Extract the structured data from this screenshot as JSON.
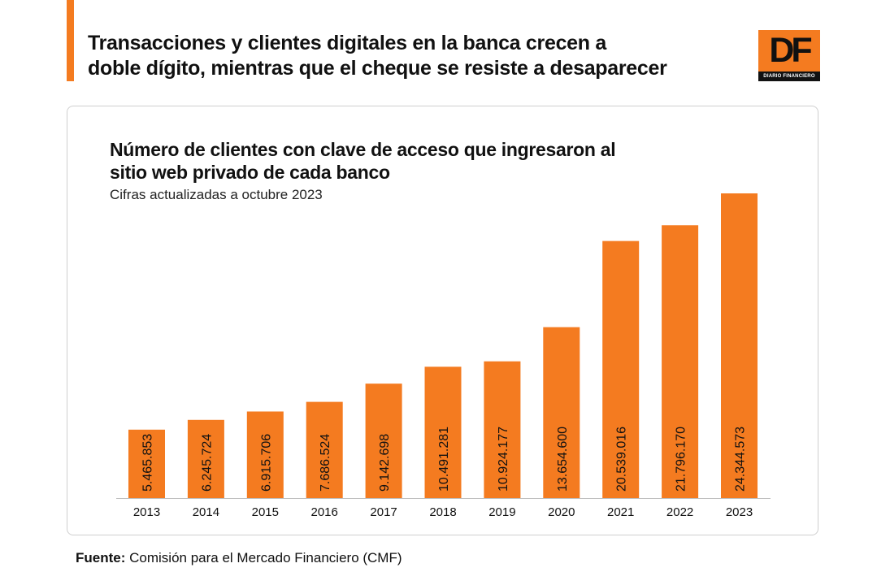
{
  "header": {
    "headline_line1": "Transacciones y clientes digitales en la banca crecen a",
    "headline_line2": "doble dígito, mientras que el cheque se resiste a desaparecer"
  },
  "logo": {
    "mark": "DF",
    "name": "DIARIO FINANCIERO"
  },
  "colors": {
    "accent": "#F47B20",
    "text": "#111111"
  },
  "chart_data": {
    "type": "bar",
    "title_line1": "Número de clientes con clave de acceso que ingresaron al",
    "title_line2": "sitio web privado de cada banco",
    "subtitle": "Cifras actualizadas a octubre 2023",
    "categories": [
      "2013",
      "2014",
      "2015",
      "2016",
      "2017",
      "2018",
      "2019",
      "2020",
      "2021",
      "2022",
      "2023"
    ],
    "values": [
      5465853,
      6245724,
      6915706,
      7686524,
      9142698,
      10491281,
      10924177,
      13654600,
      20539016,
      21796170,
      24344573
    ],
    "value_labels": [
      "5.465.853",
      "6.245.724",
      "6.915.706",
      "7.686.524",
      "9.142.698",
      "10.491.281",
      "10.924.177",
      "13.654.600",
      "20.539.016",
      "21.796.170",
      "24.344.573"
    ],
    "ylim": [
      0,
      24344573
    ],
    "xlabel": "",
    "ylabel": "",
    "grid": false,
    "bar_color": "#F47B20"
  },
  "footer": {
    "source_label": "Fuente:",
    "source_text": "Comisión para el Mercado Financiero (CMF)"
  }
}
